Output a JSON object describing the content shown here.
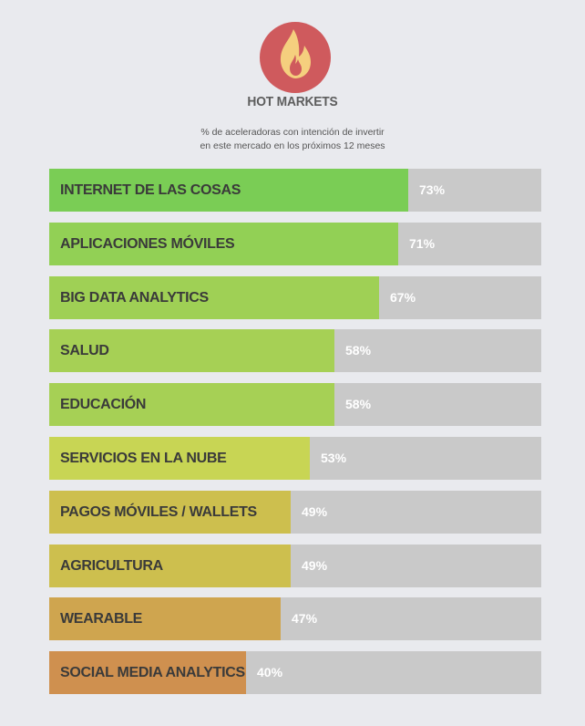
{
  "header": {
    "title": "HOT MARKETS",
    "subtitle_line1": "% de aceleradoras con intención de invertir",
    "subtitle_line2": "en este mercado en los próximos 12 meses"
  },
  "logo": {
    "icon": "flame-icon",
    "circle_color": "#cf5a5d",
    "flame_color": "#f5cf7e"
  },
  "chart_data": {
    "type": "bar",
    "orientation": "horizontal",
    "xlim": [
      0,
      100
    ],
    "categories": [
      "INTERNET DE LAS COSAS",
      "APLICACIONES MÓVILES",
      "BIG DATA ANALYTICS",
      "SALUD",
      "EDUCACIÓN",
      "SERVICIOS EN LA NUBE",
      "PAGOS MÓVILES / WALLETS",
      "AGRICULTURA",
      "WEARABLE",
      "SOCIAL MEDIA ANALYTICS"
    ],
    "values": [
      73,
      71,
      67,
      58,
      58,
      53,
      49,
      49,
      47,
      40
    ],
    "value_labels": [
      "73%",
      "71%",
      "67%",
      "58%",
      "58%",
      "53%",
      "49%",
      "49%",
      "47%",
      "40%"
    ],
    "colors": [
      "#7acd55",
      "#92d055",
      "#9fd055",
      "#a6d055",
      "#a6d055",
      "#c8d554",
      "#cdbf4e",
      "#cdbf4e",
      "#cfa54f",
      "#cf904f"
    ],
    "track_color": "#c9c9c9"
  }
}
